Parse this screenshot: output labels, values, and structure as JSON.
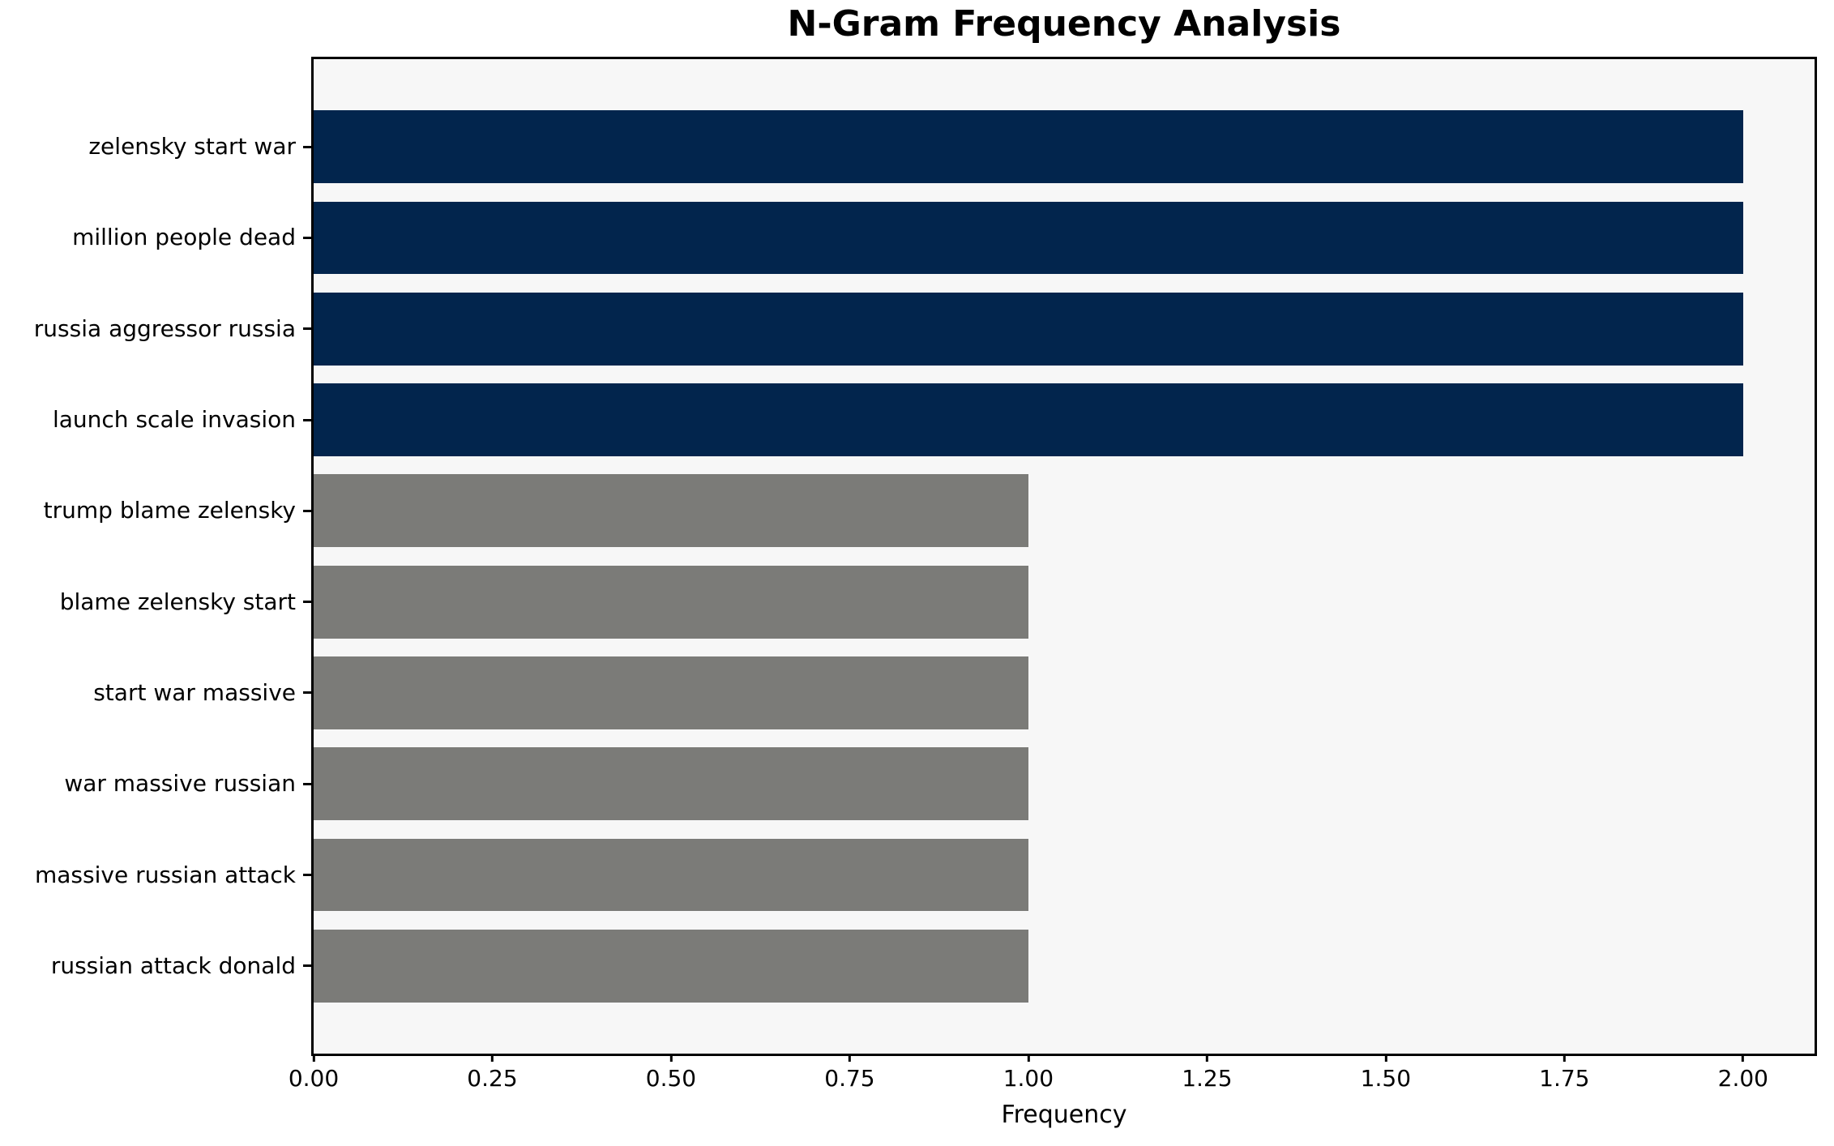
{
  "figure": {
    "background": "#ffffff",
    "plot_background": "#f7f7f7",
    "spine_color": "#000000",
    "text_color": "#000000"
  },
  "chart_data": {
    "type": "bar",
    "orientation": "horizontal",
    "title": "N-Gram Frequency Analysis",
    "xlabel": "Frequency",
    "ylabel": "",
    "categories": [
      "zelensky start war",
      "million people dead",
      "russia aggressor russia",
      "launch scale invasion",
      "trump blame zelensky",
      "blame zelensky start",
      "start war massive",
      "war massive russian",
      "massive russian attack",
      "russian attack donald"
    ],
    "values": [
      2,
      2,
      2,
      2,
      1,
      1,
      1,
      1,
      1,
      1
    ],
    "bar_colors": [
      "#02254d",
      "#02254d",
      "#02254d",
      "#02254d",
      "#7b7b78",
      "#7b7b78",
      "#7b7b78",
      "#7b7b78",
      "#7b7b78",
      "#7b7b78"
    ],
    "xlim": [
      0,
      2.1
    ],
    "xticks": [
      {
        "value": 0.0,
        "label": "0.00"
      },
      {
        "value": 0.25,
        "label": "0.25"
      },
      {
        "value": 0.5,
        "label": "0.50"
      },
      {
        "value": 0.75,
        "label": "0.75"
      },
      {
        "value": 1.0,
        "label": "1.00"
      },
      {
        "value": 1.25,
        "label": "1.25"
      },
      {
        "value": 1.5,
        "label": "1.50"
      },
      {
        "value": 1.75,
        "label": "1.75"
      },
      {
        "value": 2.0,
        "label": "2.00"
      }
    ],
    "bar_height_fraction": 0.8,
    "grid": false,
    "legend": null
  }
}
